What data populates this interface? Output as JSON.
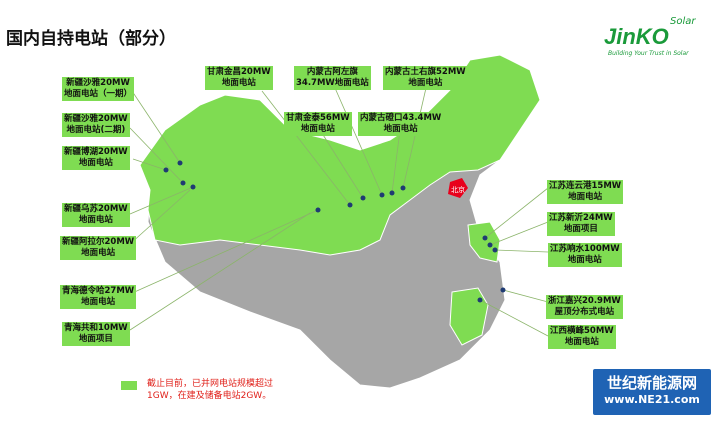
{
  "title": "国内自持电站（部分）",
  "logo": {
    "brand": "JinKO",
    "solar": "Solar",
    "tagline": "Building Your Trust in Solar"
  },
  "colors": {
    "owned_region": "#7fdc52",
    "other_region": "#a6a6a6",
    "beijing": "#e8001c",
    "dot": "#1f3b73",
    "note": "#e0201a"
  },
  "labels": [
    {
      "l1": "新疆沙雅20MW",
      "l2": "地面电站（一期）"
    },
    {
      "l1": "新疆沙雅20MW",
      "l2": "地面电站(二期)"
    },
    {
      "l1": "新疆博湖20MW",
      "l2": "地面电站"
    },
    {
      "l1": "新疆乌苏20MW",
      "l2": "地面电站"
    },
    {
      "l1": "新疆阿拉尔20MW",
      "l2": "地面电站"
    },
    {
      "l1": "青海德令哈27MW",
      "l2": "地面电站"
    },
    {
      "l1": "青海共和10MW",
      "l2": "地面项目"
    },
    {
      "l1": "甘肃金昌20MW",
      "l2": "地面电站"
    },
    {
      "l1": "内蒙古阿左旗",
      "l2": "34.7MW地面电站"
    },
    {
      "l1": "内蒙古土右旗52MW",
      "l2": "地面电站"
    },
    {
      "l1": "甘肃金泰56MW",
      "l2": "地面电站"
    },
    {
      "l1": "内蒙古磴口43.4MW",
      "l2": "地面电站"
    },
    {
      "l1": "江苏连云港15MW",
      "l2": "地面电站"
    },
    {
      "l1": "江苏新沂24MW",
      "l2": "地面项目"
    },
    {
      "l1": "江苏响水100MW",
      "l2": "地面电站"
    },
    {
      "l1": "浙江嘉兴20.9MW",
      "l2": "屋顶分布式电站"
    },
    {
      "l1": "江西横峰50MW",
      "l2": "地面电站"
    }
  ],
  "map": {
    "beijing_label": "北京"
  },
  "legend": {
    "line1": "截止目前，已并网电站规模超过",
    "line2": "1GW，在建及储备电站2GW。"
  },
  "watermark": {
    "line1": "世纪新能源网",
    "line2": "www.NE21.com"
  }
}
